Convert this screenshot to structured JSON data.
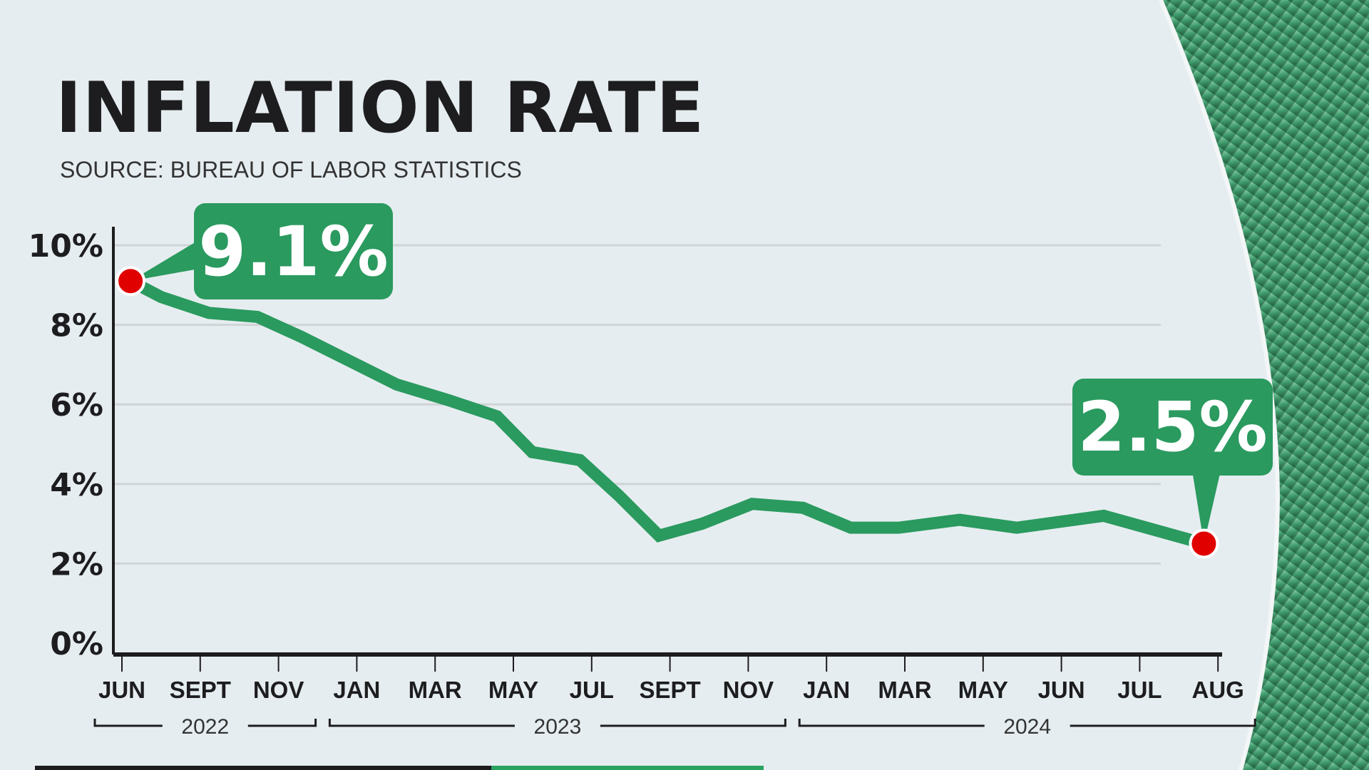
{
  "header": {
    "title": "INFLATION RATE",
    "source": "SOURCE: BUREAU OF LABOR STATISTICS"
  },
  "callouts": {
    "start": "9.1%",
    "end": "2.5%"
  },
  "colors": {
    "line": "#2a9a5f",
    "marker": "#e00000",
    "callout": "#2a9a5f",
    "axis": "#1d1d1f",
    "grid": "#cfd4d6"
  },
  "chart_data": {
    "type": "line",
    "title": "INFLATION RATE",
    "ylim": [
      0,
      10
    ],
    "y_ticks": [
      {
        "value": 0,
        "label": "0%"
      },
      {
        "value": 2,
        "label": "2%"
      },
      {
        "value": 4,
        "label": "4%"
      },
      {
        "value": 6,
        "label": "6%"
      },
      {
        "value": 8,
        "label": "8%"
      },
      {
        "value": 10,
        "label": "10%"
      }
    ],
    "x_tick_labels": [
      "JUN",
      "SEPT",
      "NOV",
      "JAN",
      "MAR",
      "MAY",
      "JUL",
      "SEPT",
      "NOV",
      "JAN",
      "MAR",
      "MAY",
      "JUN",
      "JUL",
      "AUG"
    ],
    "year_groups": [
      {
        "label": "2022",
        "from": 0,
        "to": 2
      },
      {
        "label": "2023",
        "from": 3,
        "to": 8
      },
      {
        "label": "2024",
        "from": 9,
        "to": 14
      }
    ],
    "grid": true,
    "series": [
      {
        "x_tick_position": [
          0.11,
          0.5,
          1.11,
          1.73,
          2.29,
          2.9,
          3.51,
          4.18,
          4.79,
          5.24,
          5.85,
          6.35,
          6.86,
          7.41,
          8.05,
          8.7,
          9.31,
          9.92,
          10.7,
          11.43,
          12.54,
          13.82
        ],
        "values": [
          9.1,
          8.7,
          8.3,
          8.2,
          7.7,
          7.1,
          6.5,
          6.1,
          5.7,
          4.8,
          4.6,
          3.7,
          2.7,
          3.0,
          3.5,
          3.4,
          2.9,
          2.9,
          3.1,
          2.9,
          3.2,
          2.5
        ]
      }
    ],
    "annotations": [
      "9.1%",
      "2.5%"
    ]
  }
}
